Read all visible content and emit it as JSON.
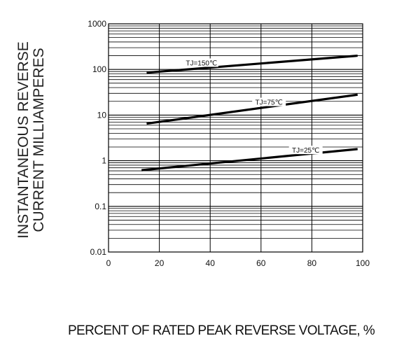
{
  "chart_data": {
    "type": "line",
    "xlabel": "PERCENT OF RATED PEAK REVERSE VOLTAGE, %",
    "ylabel_lines": [
      "INSTANTANEOUS REVERSE",
      "CURRENT MILLIAMPERES"
    ],
    "x_scale": "linear",
    "y_scale": "log",
    "xlim": [
      0,
      100
    ],
    "ylim": [
      0.01,
      1000
    ],
    "x_ticks": [
      0,
      20,
      40,
      60,
      80,
      100
    ],
    "x_tick_labels": [
      "0",
      "20",
      "40",
      "60",
      "80",
      "100"
    ],
    "y_ticks": [
      0.01,
      0.1,
      1,
      10,
      100,
      1000
    ],
    "y_tick_labels": [
      "0.01",
      "0.1",
      "1",
      "10",
      "100",
      "1000"
    ],
    "grid": true,
    "series": [
      {
        "name": "TJ=150℃",
        "label": "TJ=150℃",
        "x": [
          15,
          98
        ],
        "y": [
          85,
          200
        ]
      },
      {
        "name": "TJ=75℃",
        "label": "TJ=75℃",
        "x": [
          15,
          98
        ],
        "y": [
          6.5,
          28
        ]
      },
      {
        "name": "TJ=25℃",
        "label": "TJ=25℃",
        "x": [
          13,
          98
        ],
        "y": [
          0.62,
          1.8
        ]
      }
    ],
    "line_color": "#000000"
  }
}
